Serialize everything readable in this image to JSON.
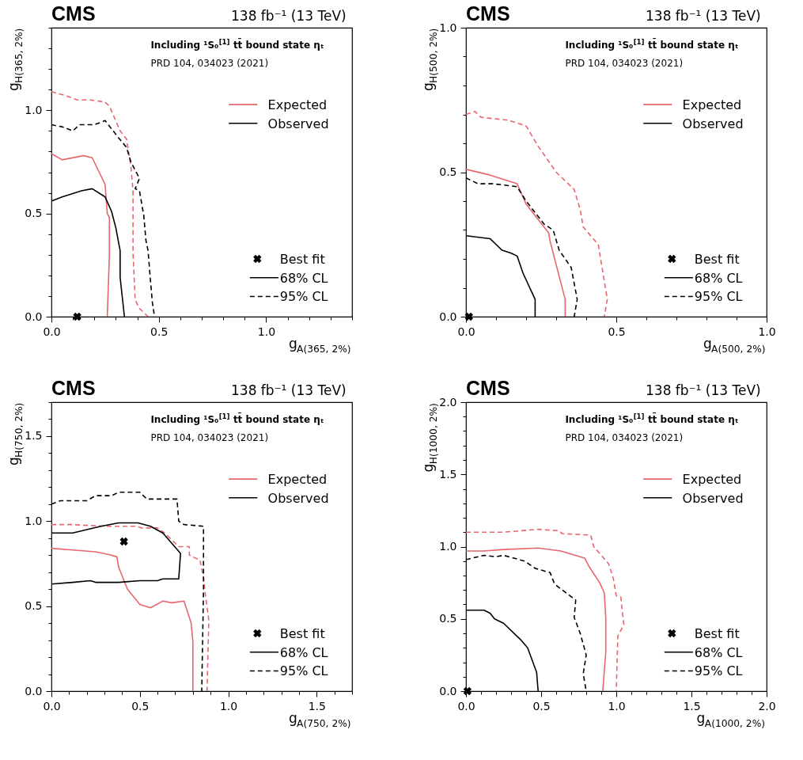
{
  "chart_data": [
    {
      "type": "line",
      "title": "CMS",
      "subtitle": "138 fb⁻¹ (13 TeV)",
      "xlabel": "g$_{A(365, 2%)}$",
      "ylabel": "g$_{H(365, 2%)}$",
      "annotations": [
        "Including ¹S₀$^{[1]}$ tt̄ bound state ηₜ",
        "PRD 104, 034023 (2021)",
        "68% CL",
        "95% CL"
      ],
      "xlim": [
        0,
        1.4
      ],
      "ylim": [
        0,
        1.4
      ],
      "xticks": [
        {
          "value": 0,
          "label": "0.0"
        },
        {
          "value": 0.1,
          "label": null
        },
        {
          "value": 0.2,
          "label": null
        },
        {
          "value": 0.3,
          "label": null
        },
        {
          "value": 0.4,
          "label": null
        },
        {
          "value": 0.5,
          "label": "0.5"
        },
        {
          "value": 0.6,
          "label": null
        },
        {
          "value": 0.7,
          "label": null
        },
        {
          "value": 0.8,
          "label": null
        },
        {
          "value": 0.9,
          "label": null
        },
        {
          "value": 1.0,
          "label": "1.0"
        },
        {
          "value": 1.1,
          "label": null
        },
        {
          "value": 1.2,
          "label": null
        },
        {
          "value": 1.3,
          "label": null
        },
        {
          "value": 1.4,
          "label": null
        }
      ],
      "yticks": [
        {
          "value": 0,
          "label": "0.0"
        },
        {
          "value": 0.1,
          "label": null
        },
        {
          "value": 0.2,
          "label": null
        },
        {
          "value": 0.3,
          "label": null
        },
        {
          "value": 0.4,
          "label": null
        },
        {
          "value": 0.5,
          "label": "0.5"
        },
        {
          "value": 0.6,
          "label": null
        },
        {
          "value": 0.7,
          "label": null
        },
        {
          "value": 0.8,
          "label": null
        },
        {
          "value": 0.9,
          "label": null
        },
        {
          "value": 1.0,
          "label": "1.0"
        },
        {
          "value": 1.1,
          "label": null
        },
        {
          "value": 1.2,
          "label": null
        },
        {
          "value": 1.3,
          "label": null
        },
        {
          "value": 1.4,
          "label": null
        }
      ],
      "grid": false,
      "legend": "right",
      "series": [
        {
          "name": "Expected",
          "type": "line",
          "color": "#e8666e",
          "line_style": "solid",
          "x": [
            0,
            0.05,
            0.15,
            0.19,
            0.25,
            0.26,
            0.27,
            0.27,
            0.26
          ],
          "values": [
            0.79,
            0.76,
            0.78,
            0.77,
            0.64,
            0.5,
            0.48,
            0.3,
            0.0
          ]
        },
        {
          "type": "line",
          "color": "#e8666e",
          "line_style": "dashed",
          "x": [
            0,
            0.07,
            0.12,
            0.18,
            0.25,
            0.27,
            0.32,
            0.35,
            0.37,
            0.38,
            0.38,
            0.39,
            0.41,
            0.45
          ],
          "values": [
            1.09,
            1.07,
            1.05,
            1.05,
            1.04,
            1.02,
            0.9,
            0.86,
            0.73,
            0.61,
            0.31,
            0.08,
            0.04,
            0.0
          ]
        },
        {
          "name": "Observed",
          "type": "line",
          "color": "#000000",
          "line_style": "solid",
          "x": [
            0,
            0.05,
            0.14,
            0.19,
            0.25,
            0.28,
            0.3,
            0.32,
            0.32,
            0.34
          ],
          "values": [
            0.56,
            0.58,
            0.61,
            0.62,
            0.58,
            0.51,
            0.43,
            0.32,
            0.19,
            0.0
          ]
        },
        {
          "type": "line",
          "color": "#000000",
          "line_style": "dashed",
          "x": [
            0,
            0.05,
            0.1,
            0.13,
            0.2,
            0.25,
            0.31,
            0.35,
            0.37,
            0.41,
            0.39,
            0.41,
            0.43,
            0.44,
            0.45,
            0.46,
            0.47,
            0.48
          ],
          "values": [
            0.93,
            0.92,
            0.9,
            0.93,
            0.93,
            0.95,
            0.87,
            0.82,
            0.75,
            0.67,
            0.62,
            0.61,
            0.49,
            0.37,
            0.32,
            0.19,
            0.07,
            0.0
          ]
        },
        {
          "name": "Best fit",
          "type": "scatter",
          "color": "#000000",
          "marker": "cross",
          "x": [
            0.12
          ],
          "values": [
            0.0
          ]
        }
      ]
    },
    {
      "type": "line",
      "title": "CMS",
      "subtitle": "138 fb⁻¹ (13 TeV)",
      "xlabel": "g$_{A(500, 2%)}$",
      "ylabel": "g$_{H(500, 2%)}$",
      "annotations": [
        "Including ¹S₀$^{[1]}$ tt̄ bound state ηₜ",
        "PRD 104, 034023 (2021)",
        "68% CL",
        "95% CL"
      ],
      "xlim": [
        0,
        1.0
      ],
      "ylim": [
        0,
        1.0
      ],
      "xticks": [
        {
          "value": 0,
          "label": "0.0"
        },
        {
          "value": 0.1,
          "label": null
        },
        {
          "value": 0.2,
          "label": null
        },
        {
          "value": 0.3,
          "label": null
        },
        {
          "value": 0.4,
          "label": null
        },
        {
          "value": 0.5,
          "label": "0.5"
        },
        {
          "value": 0.6,
          "label": null
        },
        {
          "value": 0.7,
          "label": null
        },
        {
          "value": 0.8,
          "label": null
        },
        {
          "value": 0.9,
          "label": null
        },
        {
          "value": 1.0,
          "label": "1.0"
        }
      ],
      "yticks": [
        {
          "value": 0,
          "label": "0.0"
        },
        {
          "value": 0.1,
          "label": null
        },
        {
          "value": 0.2,
          "label": null
        },
        {
          "value": 0.3,
          "label": null
        },
        {
          "value": 0.4,
          "label": null
        },
        {
          "value": 0.5,
          "label": "0.5"
        },
        {
          "value": 0.6,
          "label": null
        },
        {
          "value": 0.7,
          "label": null
        },
        {
          "value": 0.8,
          "label": null
        },
        {
          "value": 0.9,
          "label": null
        },
        {
          "value": 1.0,
          "label": "1.0"
        }
      ],
      "grid": false,
      "legend": "right",
      "series": [
        {
          "name": "Expected",
          "type": "line",
          "color": "#e8666e",
          "line_style": "solid",
          "x": [
            0,
            0.08,
            0.17,
            0.2,
            0.275,
            0.28,
            0.33,
            0.33
          ],
          "values": [
            0.51,
            0.49,
            0.46,
            0.39,
            0.29,
            0.26,
            0.06,
            0.0
          ]
        },
        {
          "type": "line",
          "color": "#e8666e",
          "line_style": "dashed",
          "x": [
            0,
            0.03,
            0.05,
            0.14,
            0.2,
            0.24,
            0.3,
            0.36,
            0.38,
            0.39,
            0.44,
            0.47,
            0.46
          ],
          "values": [
            0.7,
            0.71,
            0.69,
            0.68,
            0.66,
            0.59,
            0.5,
            0.44,
            0.37,
            0.31,
            0.25,
            0.06,
            0.0
          ]
        },
        {
          "name": "Observed",
          "type": "line",
          "color": "#000000",
          "line_style": "solid",
          "x": [
            0,
            0.08,
            0.1,
            0.12,
            0.15,
            0.17,
            0.19,
            0.23,
            0.23
          ],
          "values": [
            0.28,
            0.27,
            0.25,
            0.23,
            0.22,
            0.21,
            0.15,
            0.06,
            0.0
          ]
        },
        {
          "type": "line",
          "color": "#000000",
          "line_style": "dashed",
          "x": [
            0,
            0.04,
            0.09,
            0.17,
            0.2,
            0.26,
            0.29,
            0.31,
            0.35,
            0.37,
            0.36
          ],
          "values": [
            0.48,
            0.46,
            0.46,
            0.45,
            0.4,
            0.32,
            0.3,
            0.23,
            0.17,
            0.06,
            0.0
          ]
        },
        {
          "name": "Best fit",
          "type": "scatter",
          "color": "#000000",
          "marker": "cross",
          "x": [
            0.01
          ],
          "values": [
            0.0
          ]
        }
      ]
    },
    {
      "type": "line",
      "title": "CMS",
      "subtitle": "138 fb⁻¹ (13 TeV)",
      "xlabel": "g$_{A(750, 2%)}$",
      "ylabel": "g$_{H(750, 2%)}$",
      "annotations": [
        "Including ¹S₀$^{[1]}$ tt̄ bound state ηₜ",
        "PRD 104, 034023 (2021)",
        "68% CL",
        "95% CL"
      ],
      "xlim": [
        0,
        1.7
      ],
      "ylim": [
        0,
        1.7
      ],
      "xticks": [
        {
          "value": 0,
          "label": "0.0"
        },
        {
          "value": 0.1,
          "label": null
        },
        {
          "value": 0.2,
          "label": null
        },
        {
          "value": 0.3,
          "label": null
        },
        {
          "value": 0.4,
          "label": null
        },
        {
          "value": 0.5,
          "label": "0.5"
        },
        {
          "value": 0.6,
          "label": null
        },
        {
          "value": 0.7,
          "label": null
        },
        {
          "value": 0.8,
          "label": null
        },
        {
          "value": 0.9,
          "label": null
        },
        {
          "value": 1.0,
          "label": "1.0"
        },
        {
          "value": 1.1,
          "label": null
        },
        {
          "value": 1.2,
          "label": null
        },
        {
          "value": 1.3,
          "label": null
        },
        {
          "value": 1.4,
          "label": null
        },
        {
          "value": 1.5,
          "label": "1.5"
        },
        {
          "value": 1.6,
          "label": null
        },
        {
          "value": 1.7,
          "label": null
        }
      ],
      "yticks": [
        {
          "value": 0,
          "label": "0.0"
        },
        {
          "value": 0.1,
          "label": null
        },
        {
          "value": 0.2,
          "label": null
        },
        {
          "value": 0.3,
          "label": null
        },
        {
          "value": 0.4,
          "label": null
        },
        {
          "value": 0.5,
          "label": "0.5"
        },
        {
          "value": 0.6,
          "label": null
        },
        {
          "value": 0.7,
          "label": null
        },
        {
          "value": 0.8,
          "label": null
        },
        {
          "value": 0.9,
          "label": null
        },
        {
          "value": 1.0,
          "label": "1.0"
        },
        {
          "value": 1.1,
          "label": null
        },
        {
          "value": 1.2,
          "label": null
        },
        {
          "value": 1.3,
          "label": null
        },
        {
          "value": 1.4,
          "label": null
        },
        {
          "value": 1.5,
          "label": "1.5"
        },
        {
          "value": 1.6,
          "label": null
        },
        {
          "value": 1.7,
          "label": null
        }
      ],
      "grid": false,
      "legend": "right",
      "series": [
        {
          "name": "Expected",
          "type": "line",
          "color": "#e8666e",
          "line_style": "solid",
          "x": [
            0,
            0.12,
            0.25,
            0.34,
            0.37,
            0.38,
            0.43,
            0.5,
            0.56,
            0.63,
            0.68,
            0.75,
            0.79,
            0.8,
            0.8
          ],
          "values": [
            0.84,
            0.83,
            0.82,
            0.8,
            0.79,
            0.73,
            0.6,
            0.51,
            0.49,
            0.53,
            0.52,
            0.53,
            0.4,
            0.29,
            0.0
          ]
        },
        {
          "type": "line",
          "color": "#e8666e",
          "line_style": "dashed",
          "x": [
            0,
            0.11,
            0.31,
            0.48,
            0.51,
            0.6,
            0.64,
            0.72,
            0.78,
            0.78,
            0.84,
            0.86,
            0.87,
            0.89,
            0.88
          ],
          "values": [
            0.98,
            0.98,
            0.97,
            0.97,
            0.96,
            0.96,
            0.93,
            0.85,
            0.85,
            0.8,
            0.77,
            0.67,
            0.57,
            0.42,
            0.0
          ]
        },
        {
          "name": "Observed",
          "type": "line",
          "color": "#000000",
          "line_style": "solid",
          "x": [
            0,
            0.12,
            0.2,
            0.28,
            0.38,
            0.49,
            0.56,
            0.63,
            0.73,
            0.72,
            0.63,
            0.6,
            0.5,
            0.38,
            0.25,
            0.22,
            0.12,
            0
          ],
          "values": [
            0.93,
            0.93,
            0.95,
            0.97,
            0.99,
            0.99,
            0.97,
            0.93,
            0.81,
            0.66,
            0.66,
            0.65,
            0.65,
            0.64,
            0.64,
            0.65,
            0.64,
            0.63
          ]
        },
        {
          "type": "line",
          "color": "#000000",
          "line_style": "dashed",
          "x": [
            0,
            0.05,
            0.2,
            0.25,
            0.34,
            0.38,
            0.5,
            0.54,
            0.71,
            0.72,
            0.75,
            0.86,
            0.86,
            0.86,
            0.85
          ],
          "values": [
            1.1,
            1.12,
            1.12,
            1.15,
            1.15,
            1.17,
            1.17,
            1.13,
            1.13,
            1.0,
            0.98,
            0.97,
            0.79,
            0.6,
            0.0
          ]
        },
        {
          "name": "Best fit",
          "type": "scatter",
          "color": "#000000",
          "marker": "cross",
          "x": [
            0.41
          ],
          "values": [
            0.88
          ]
        }
      ]
    },
    {
      "type": "line",
      "title": "CMS",
      "subtitle": "138 fb⁻¹ (13 TeV)",
      "xlabel": "g$_{A(1000, 2%)}$",
      "ylabel": "g$_{H(1000, 2%)}$",
      "annotations": [
        "Including ¹S₀$^{[1]}$ tt̄ bound state ηₜ",
        "PRD 104, 034023 (2021)",
        "68% CL",
        "95% CL"
      ],
      "xlim": [
        0,
        2.0
      ],
      "ylim": [
        0,
        2.0
      ],
      "xticks": [
        {
          "value": 0,
          "label": "0.0"
        },
        {
          "value": 0.1,
          "label": null
        },
        {
          "value": 0.2,
          "label": null
        },
        {
          "value": 0.3,
          "label": null
        },
        {
          "value": 0.4,
          "label": null
        },
        {
          "value": 0.5,
          "label": "0.5"
        },
        {
          "value": 0.6,
          "label": null
        },
        {
          "value": 0.7,
          "label": null
        },
        {
          "value": 0.8,
          "label": null
        },
        {
          "value": 0.9,
          "label": null
        },
        {
          "value": 1.0,
          "label": "1.0"
        },
        {
          "value": 1.1,
          "label": null
        },
        {
          "value": 1.2,
          "label": null
        },
        {
          "value": 1.3,
          "label": null
        },
        {
          "value": 1.4,
          "label": null
        },
        {
          "value": 1.5,
          "label": "1.5"
        },
        {
          "value": 1.6,
          "label": null
        },
        {
          "value": 1.7,
          "label": null
        },
        {
          "value": 1.8,
          "label": null
        },
        {
          "value": 1.9,
          "label": null
        },
        {
          "value": 2.0,
          "label": "2.0"
        }
      ],
      "yticks": [
        {
          "value": 0,
          "label": "0.0"
        },
        {
          "value": 0.1,
          "label": null
        },
        {
          "value": 0.2,
          "label": null
        },
        {
          "value": 0.3,
          "label": null
        },
        {
          "value": 0.4,
          "label": null
        },
        {
          "value": 0.5,
          "label": "0.5"
        },
        {
          "value": 0.6,
          "label": null
        },
        {
          "value": 0.7,
          "label": null
        },
        {
          "value": 0.8,
          "label": null
        },
        {
          "value": 0.9,
          "label": null
        },
        {
          "value": 1.0,
          "label": "1.0"
        },
        {
          "value": 1.1,
          "label": null
        },
        {
          "value": 1.2,
          "label": null
        },
        {
          "value": 1.3,
          "label": null
        },
        {
          "value": 1.4,
          "label": null
        },
        {
          "value": 1.5,
          "label": "1.5"
        },
        {
          "value": 1.6,
          "label": null
        },
        {
          "value": 1.7,
          "label": null
        },
        {
          "value": 1.8,
          "label": null
        },
        {
          "value": 1.9,
          "label": null
        },
        {
          "value": 2.0,
          "label": "2.0"
        }
      ],
      "grid": false,
      "legend": "right",
      "series": [
        {
          "name": "Expected",
          "type": "line",
          "color": "#e8666e",
          "line_style": "solid",
          "x": [
            0,
            0.12,
            0.25,
            0.48,
            0.63,
            0.79,
            0.82,
            0.89,
            0.92,
            0.93,
            0.93,
            0.91
          ],
          "values": [
            0.97,
            0.97,
            0.98,
            0.99,
            0.97,
            0.92,
            0.86,
            0.75,
            0.68,
            0.51,
            0.27,
            0.0
          ]
        },
        {
          "type": "line",
          "color": "#e8666e",
          "line_style": "dashed",
          "x": [
            0,
            0.25,
            0.48,
            0.62,
            0.64,
            0.83,
            0.85,
            0.95,
            0.98,
            1.0,
            1.03,
            1.05,
            1.01,
            1.0
          ],
          "values": [
            1.1,
            1.1,
            1.12,
            1.11,
            1.09,
            1.08,
            1.0,
            0.88,
            0.78,
            0.66,
            0.65,
            0.46,
            0.38,
            0.0
          ]
        },
        {
          "name": "Observed",
          "type": "line",
          "color": "#000000",
          "line_style": "solid",
          "x": [
            0,
            0.12,
            0.16,
            0.19,
            0.25,
            0.36,
            0.41,
            0.47,
            0.48
          ],
          "values": [
            0.56,
            0.56,
            0.54,
            0.5,
            0.47,
            0.36,
            0.3,
            0.13,
            0.0
          ]
        },
        {
          "type": "line",
          "color": "#000000",
          "line_style": "dashed",
          "x": [
            0,
            0.12,
            0.2,
            0.25,
            0.39,
            0.46,
            0.56,
            0.59,
            0.73,
            0.72,
            0.76,
            0.8,
            0.78,
            0.8
          ],
          "values": [
            0.91,
            0.94,
            0.93,
            0.94,
            0.9,
            0.85,
            0.82,
            0.74,
            0.63,
            0.51,
            0.4,
            0.25,
            0.12,
            0.0
          ]
        },
        {
          "name": "Best fit",
          "type": "scatter",
          "color": "#000000",
          "marker": "cross",
          "x": [
            0.01
          ],
          "values": [
            0.0
          ]
        }
      ]
    }
  ]
}
